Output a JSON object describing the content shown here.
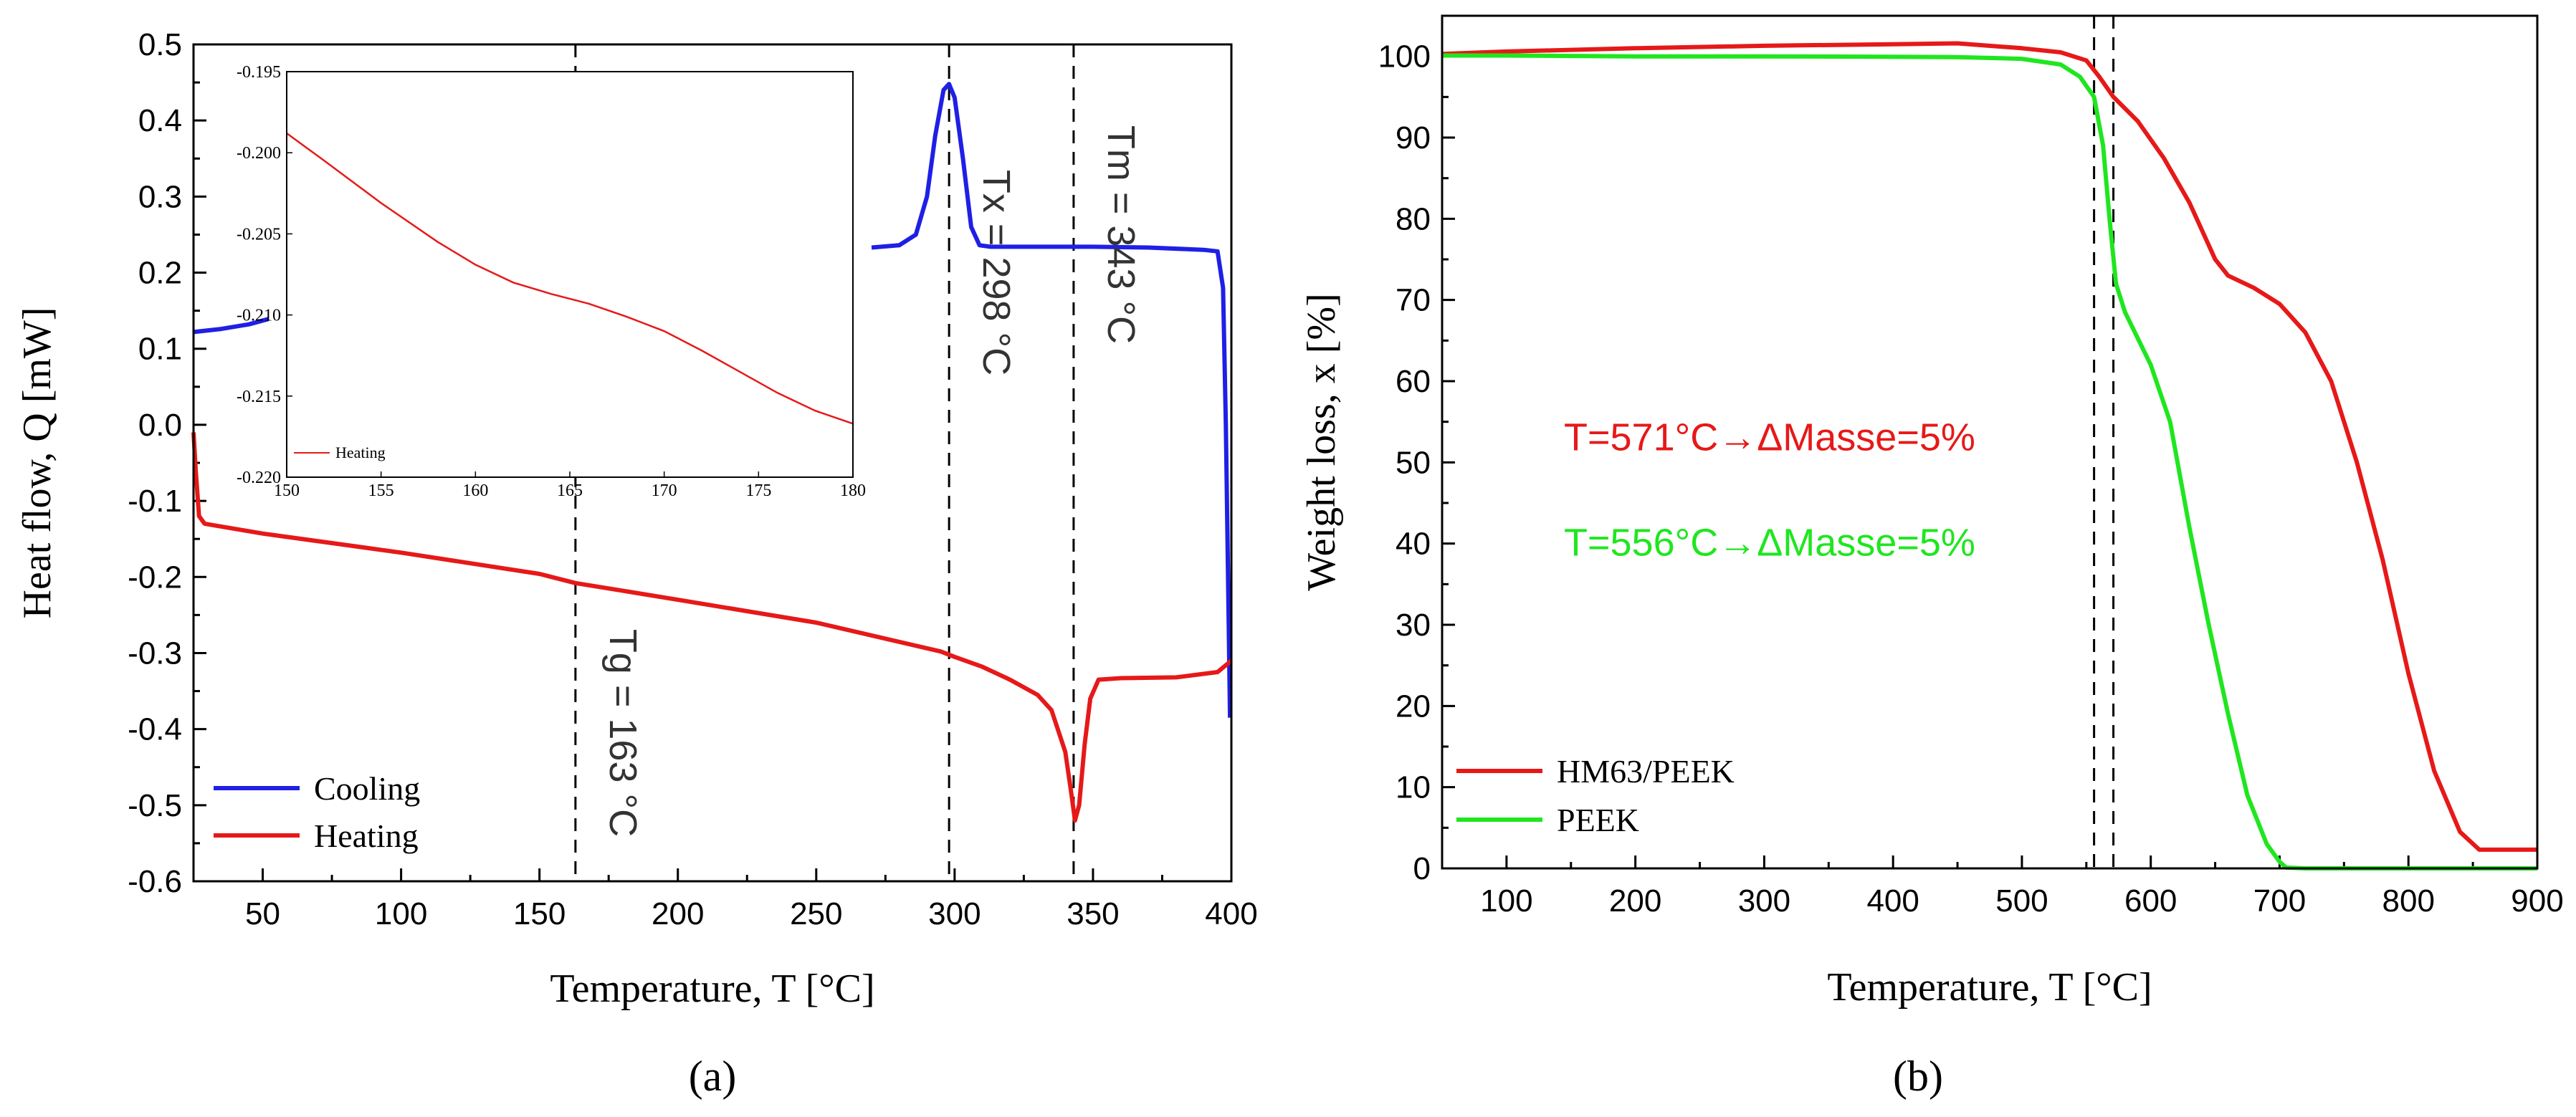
{
  "chart_data": [
    {
      "panel_label": "(a)",
      "type": "line",
      "xlabel": "Temperature, T [°C]",
      "ylabel": "Heat flow, Q [mW]",
      "xlim": [
        25,
        400
      ],
      "ylim": [
        -0.6,
        0.5
      ],
      "x_ticks": [
        50,
        100,
        150,
        200,
        250,
        300,
        350,
        400
      ],
      "y_ticks": [
        -0.6,
        -0.5,
        -0.4,
        -0.3,
        -0.2,
        -0.1,
        0.0,
        0.1,
        0.2,
        0.3,
        0.4,
        0.5
      ],
      "x_tick_labels": [
        "50",
        "100",
        "150",
        "200",
        "250",
        "300",
        "350",
        "400"
      ],
      "y_tick_labels": [
        "-0.6",
        "-0.5",
        "-0.4",
        "-0.3",
        "-0.2",
        "-0.1",
        "0.0",
        "0.1",
        "0.2",
        "0.3",
        "0.4",
        "0.5"
      ],
      "legend_position": "bottom-left",
      "series": [
        {
          "name": "Cooling",
          "color": "#1f1fe6",
          "segments": [
            [
              [
                25,
                0.122
              ],
              [
                35,
                0.126
              ],
              [
                45,
                0.132
              ],
              [
                52,
                0.139
              ]
            ],
            [
              [
                270,
                0.233
              ],
              [
                280,
                0.236
              ],
              [
                286,
                0.25
              ],
              [
                290,
                0.3
              ],
              [
                293,
                0.38
              ],
              [
                296,
                0.44
              ],
              [
                298,
                0.448
              ],
              [
                300,
                0.43
              ],
              [
                303,
                0.35
              ],
              [
                306,
                0.26
              ],
              [
                309,
                0.236
              ],
              [
                313,
                0.234
              ],
              [
                330,
                0.234
              ],
              [
                350,
                0.234
              ],
              [
                370,
                0.233
              ],
              [
                390,
                0.23
              ],
              [
                395,
                0.228
              ],
              [
                397,
                0.18
              ],
              [
                398,
                0.0
              ],
              [
                399,
                -0.25
              ],
              [
                399.5,
                -0.385
              ]
            ]
          ]
        },
        {
          "name": "Heating",
          "color": "#e61919",
          "segments": [
            [
              [
                25,
                -0.01
              ],
              [
                25.8,
                -0.06
              ],
              [
                27,
                -0.12
              ],
              [
                29,
                -0.13
              ],
              [
                50,
                -0.143
              ],
              [
                100,
                -0.168
              ],
              [
                150,
                -0.196
              ],
              [
                163,
                -0.208
              ],
              [
                180,
                -0.218
              ],
              [
                200,
                -0.23
              ],
              [
                250,
                -0.26
              ],
              [
                295,
                -0.298
              ],
              [
                300,
                -0.305
              ],
              [
                310,
                -0.318
              ],
              [
                320,
                -0.335
              ],
              [
                330,
                -0.355
              ],
              [
                335,
                -0.375
              ],
              [
                340,
                -0.43
              ],
              [
                342,
                -0.48
              ],
              [
                343.5,
                -0.52
              ],
              [
                345,
                -0.5
              ],
              [
                347,
                -0.42
              ],
              [
                349,
                -0.36
              ],
              [
                352,
                -0.335
              ],
              [
                360,
                -0.333
              ],
              [
                380,
                -0.332
              ],
              [
                395,
                -0.325
              ],
              [
                400,
                -0.31
              ]
            ]
          ]
        }
      ],
      "vertical_markers": [
        {
          "x": 163,
          "label": "Tg = 163 °C"
        },
        {
          "x": 298,
          "label": "Tx = 298 °C"
        },
        {
          "x": 343,
          "label": "Tm = 343 °C"
        }
      ],
      "inset": {
        "type": "line",
        "xlim": [
          150,
          180
        ],
        "ylim": [
          -0.22,
          -0.195
        ],
        "x_ticks": [
          150,
          155,
          160,
          165,
          170,
          175,
          180
        ],
        "y_ticks": [
          -0.22,
          -0.215,
          -0.21,
          -0.205,
          -0.2,
          -0.195
        ],
        "x_tick_labels": [
          "150",
          "155",
          "160",
          "165",
          "170",
          "175",
          "180"
        ],
        "y_tick_labels": [
          "-0.220",
          "-0.215",
          "-0.210",
          "-0.205",
          "-0.200",
          "-0.195"
        ],
        "series": [
          {
            "name": "Heating",
            "color": "#e61919",
            "points": [
              [
                150,
                -0.1988
              ],
              [
                152,
                -0.2005
              ],
              [
                155,
                -0.2031
              ],
              [
                158,
                -0.2055
              ],
              [
                160,
                -0.2069
              ],
              [
                162,
                -0.208
              ],
              [
                164,
                -0.2087
              ],
              [
                166,
                -0.2093
              ],
              [
                168,
                -0.2101
              ],
              [
                170,
                -0.211
              ],
              [
                172,
                -0.2122
              ],
              [
                174,
                -0.2135
              ],
              [
                176,
                -0.2148
              ],
              [
                178,
                -0.2159
              ],
              [
                180,
                -0.2167
              ]
            ]
          }
        ]
      }
    },
    {
      "panel_label": "(b)",
      "type": "line",
      "xlabel": "Temperature, T [°C]",
      "ylabel": "Weight loss, x [%]",
      "xlim": [
        50,
        900
      ],
      "ylim": [
        0,
        105
      ],
      "x_ticks": [
        100,
        200,
        300,
        400,
        500,
        600,
        700,
        800,
        900
      ],
      "y_ticks": [
        0,
        10,
        20,
        30,
        40,
        50,
        60,
        70,
        80,
        90,
        100
      ],
      "x_tick_labels": [
        "100",
        "200",
        "300",
        "400",
        "500",
        "600",
        "700",
        "800",
        "900"
      ],
      "y_tick_labels": [
        "0",
        "10",
        "20",
        "30",
        "40",
        "50",
        "60",
        "70",
        "80",
        "90",
        "100"
      ],
      "legend_position": "bottom-left",
      "series": [
        {
          "name": "HM63/PEEK",
          "color": "#e61919",
          "points": [
            [
              50,
              100.3
            ],
            [
              100,
              100.6
            ],
            [
              200,
              101.0
            ],
            [
              300,
              101.3
            ],
            [
              400,
              101.5
            ],
            [
              450,
              101.6
            ],
            [
              500,
              101.0
            ],
            [
              530,
              100.5
            ],
            [
              550,
              99.5
            ],
            [
              560,
              97.5
            ],
            [
              571,
              95.0
            ],
            [
              590,
              92.0
            ],
            [
              610,
              87.5
            ],
            [
              630,
              82.0
            ],
            [
              650,
              75.0
            ],
            [
              660,
              73.0
            ],
            [
              680,
              71.5
            ],
            [
              700,
              69.5
            ],
            [
              720,
              66.0
            ],
            [
              740,
              60.0
            ],
            [
              760,
              50.0
            ],
            [
              780,
              38.0
            ],
            [
              800,
              24.0
            ],
            [
              820,
              12.0
            ],
            [
              840,
              4.5
            ],
            [
              855,
              2.3
            ],
            [
              870,
              2.3
            ],
            [
              900,
              2.3
            ]
          ]
        },
        {
          "name": "PEEK",
          "color": "#1fe61f",
          "points": [
            [
              50,
              100.1
            ],
            [
              100,
              100.1
            ],
            [
              200,
              100.0
            ],
            [
              300,
              100.0
            ],
            [
              400,
              99.95
            ],
            [
              450,
              99.9
            ],
            [
              500,
              99.7
            ],
            [
              530,
              99.0
            ],
            [
              545,
              97.5
            ],
            [
              556,
              95.0
            ],
            [
              563,
              89.0
            ],
            [
              568,
              80.0
            ],
            [
              573,
              72.0
            ],
            [
              580,
              68.5
            ],
            [
              600,
              62.0
            ],
            [
              615,
              55.0
            ],
            [
              630,
              42.0
            ],
            [
              645,
              30.0
            ],
            [
              660,
              19.0
            ],
            [
              675,
              9.0
            ],
            [
              690,
              3.0
            ],
            [
              700,
              0.8
            ],
            [
              705,
              0.1
            ],
            [
              720,
              0.0
            ],
            [
              800,
              0.0
            ],
            [
              900,
              0.0
            ]
          ]
        }
      ],
      "vertical_markers": [
        {
          "x": 556,
          "label": ""
        },
        {
          "x": 571,
          "label": ""
        }
      ],
      "annotations": [
        {
          "text": "T=571°C→ΔMasse=5%",
          "color": "#e61919"
        },
        {
          "text": "T=556°C→ΔMasse=5%",
          "color": "#1fe61f"
        }
      ]
    }
  ]
}
